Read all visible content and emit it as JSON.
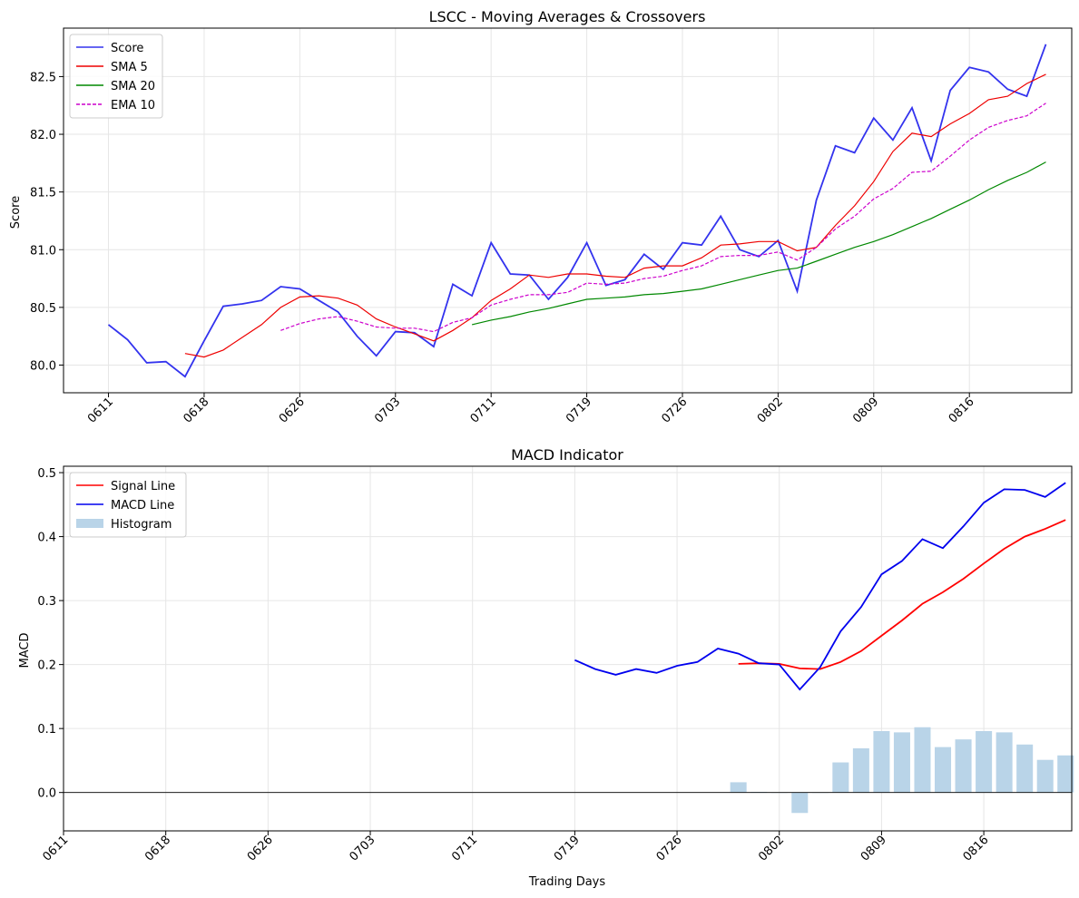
{
  "chart_data": [
    {
      "type": "line",
      "title": "LSCC - Moving Averages & Crossovers",
      "xlabel": "",
      "ylabel": "Score",
      "x_tick_labels": [
        "0611",
        "0618",
        "0626",
        "0703",
        "0711",
        "0719",
        "0726",
        "0802",
        "0809",
        "0816"
      ],
      "x_tick_index": [
        0,
        5,
        10,
        15,
        20,
        25,
        30,
        35,
        40,
        45
      ],
      "y_ticks": [
        "80.0",
        "80.5",
        "81.0",
        "81.5",
        "82.0",
        "82.5"
      ],
      "ylim": [
        79.76,
        82.92
      ],
      "xlim": [
        -2.35,
        50.35
      ],
      "grid": true,
      "legend_position": "upper-left",
      "series": [
        {
          "name": "Score",
          "color": "#3333ee",
          "style": "solid",
          "values": [
            80.35,
            80.22,
            80.02,
            80.03,
            79.9,
            80.21,
            80.51,
            80.53,
            80.56,
            80.68,
            80.66,
            80.56,
            80.46,
            80.25,
            80.08,
            80.29,
            80.28,
            80.16,
            80.7,
            80.6,
            81.06,
            80.79,
            80.78,
            80.57,
            80.76,
            81.06,
            80.69,
            80.74,
            80.96,
            80.83,
            81.06,
            81.04,
            81.29,
            81.0,
            80.94,
            81.08,
            80.64,
            81.43,
            81.9,
            81.84,
            82.14,
            81.95,
            82.23,
            81.77,
            82.38,
            82.58,
            82.54,
            82.39,
            82.33,
            82.78
          ]
        },
        {
          "name": "SMA 5",
          "color": "#ee0000",
          "style": "solid",
          "start": 4,
          "values": [
            80.1,
            80.07,
            80.13,
            80.24,
            80.35,
            80.5,
            80.59,
            80.6,
            80.58,
            80.52,
            80.4,
            80.33,
            80.27,
            80.21,
            80.3,
            80.41,
            80.56,
            80.66,
            80.78,
            80.76,
            80.79,
            80.79,
            80.77,
            80.76,
            80.84,
            80.86,
            80.86,
            80.93,
            81.04,
            81.05,
            81.07,
            81.07,
            80.99,
            81.02,
            81.21,
            81.38,
            81.59,
            81.85,
            82.01,
            81.98,
            82.09,
            82.18,
            82.3,
            82.33,
            82.44,
            82.52
          ]
        },
        {
          "name": "SMA 20",
          "color": "#008800",
          "style": "solid",
          "start": 19,
          "values": [
            80.35,
            80.39,
            80.42,
            80.46,
            80.49,
            80.53,
            80.57,
            80.58,
            80.59,
            80.61,
            80.62,
            80.64,
            80.66,
            80.7,
            80.74,
            80.78,
            80.82,
            80.84,
            80.9,
            80.96,
            81.02,
            81.07,
            81.13,
            81.2,
            81.27,
            81.35,
            81.43,
            81.52,
            81.6,
            81.67,
            81.76
          ]
        },
        {
          "name": "EMA 10",
          "color": "#cc00cc",
          "style": "dashed",
          "start": 9,
          "values": [
            80.3,
            80.36,
            80.4,
            80.42,
            80.38,
            80.33,
            80.32,
            80.32,
            80.29,
            80.37,
            80.41,
            80.52,
            80.57,
            80.61,
            80.61,
            80.63,
            80.71,
            80.7,
            80.71,
            80.75,
            80.77,
            80.82,
            80.86,
            80.94,
            80.95,
            80.95,
            80.98,
            80.91,
            81.02,
            81.18,
            81.29,
            81.44,
            81.53,
            81.67,
            81.68,
            81.81,
            81.95,
            82.06,
            82.12,
            82.16,
            82.27
          ]
        }
      ]
    },
    {
      "type": "line",
      "title": "MACD Indicator",
      "xlabel": "Trading Days",
      "ylabel": "MACD",
      "x_tick_labels": [
        "0611",
        "0618",
        "0626",
        "0703",
        "0711",
        "0719",
        "0726",
        "0802",
        "0809",
        "0816"
      ],
      "x_tick_index": [
        0,
        5,
        10,
        15,
        20,
        25,
        30,
        35,
        40,
        45
      ],
      "y_ticks": [
        "0.0",
        "0.1",
        "0.2",
        "0.3",
        "0.4",
        "0.5"
      ],
      "ylim": [
        -0.06,
        0.51
      ],
      "xlim": [
        0,
        49.3
      ],
      "grid": true,
      "legend_position": "upper-left",
      "series": [
        {
          "name": "Signal Line",
          "color": "#ff0000",
          "style": "solid",
          "start": 33,
          "values": [
            0.201,
            0.202,
            0.201,
            0.194,
            0.193,
            0.204,
            0.221,
            0.245,
            0.269,
            0.295,
            0.313,
            0.334,
            0.358,
            0.381,
            0.4,
            0.412,
            0.426
          ]
        },
        {
          "name": "MACD Line",
          "color": "#0000ee",
          "style": "solid",
          "start": 25,
          "values": [
            0.207,
            0.193,
            0.184,
            0.193,
            0.187,
            0.198,
            0.204,
            0.225,
            0.217,
            0.202,
            0.2,
            0.161,
            0.196,
            0.252,
            0.29,
            0.341,
            0.362,
            0.396,
            0.382,
            0.416,
            0.453,
            0.474,
            0.473,
            0.462,
            0.484
          ]
        },
        {
          "name": "Histogram",
          "color": "#b9d4e8",
          "style": "bar",
          "start": 33,
          "values": [
            0.016,
            0.001,
            0.0,
            -0.032,
            0.0,
            0.047,
            0.069,
            0.096,
            0.094,
            0.102,
            0.071,
            0.083,
            0.096,
            0.094,
            0.075,
            0.051,
            0.058
          ]
        }
      ]
    }
  ]
}
